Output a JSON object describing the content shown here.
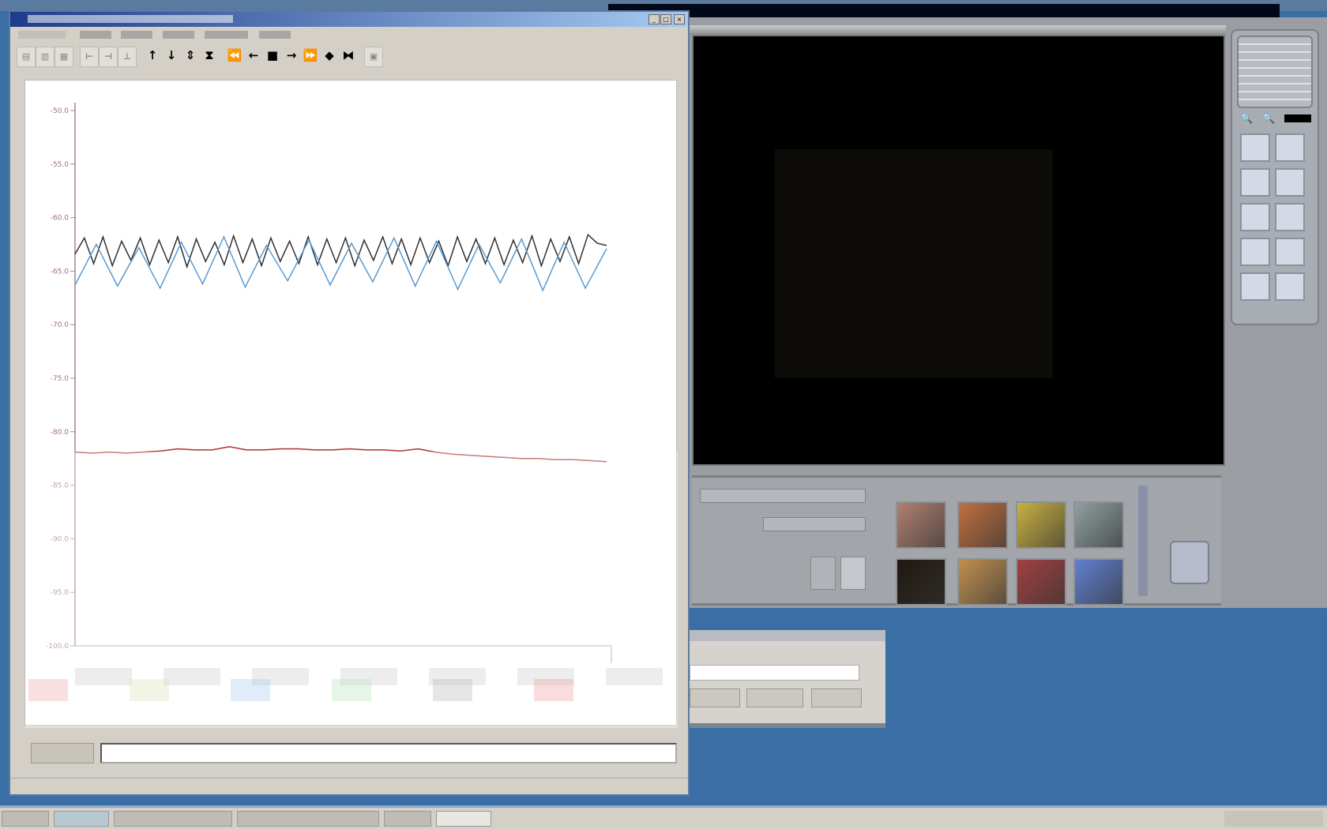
{
  "left_window": {
    "title": "",
    "toolbar": {
      "icons": [
        "view-1-icon",
        "view-2-icon",
        "view-3-icon",
        "cursor-1-icon",
        "cursor-2-icon",
        "cursor-3-icon",
        "arrow-up-icon",
        "arrow-down-icon",
        "arrow-updown-icon",
        "compress-vertical-icon",
        "rewind-icon",
        "step-back-icon",
        "stop-icon",
        "step-forward-icon",
        "fast-forward-icon",
        "expand-horizontal-icon",
        "compress-horizontal-icon",
        "print-icon"
      ]
    },
    "legend_colors": [
      "#e06060",
      "#c8c880",
      "#60a0e0",
      "#80d080",
      "#808080",
      "#e05050"
    ]
  },
  "chart_data": {
    "type": "line",
    "title": "",
    "ylabel": "",
    "ylim": [
      -100,
      -50
    ],
    "yticks": [
      "-50.0",
      "-55.0",
      "-60.0",
      "-65.0",
      "-70.0",
      "-75.0",
      "-80.0",
      "-85.0",
      "-90.0",
      "-95.0",
      "-100.0"
    ],
    "grid": false,
    "series": [
      {
        "color": "#303030",
        "values": [
          -63.4,
          -61.9,
          -64.3,
          -61.8,
          -64.5,
          -62.2,
          -64.0,
          -61.9,
          -64.4,
          -62.1,
          -64.2,
          -61.8,
          -64.6,
          -62.0,
          -64.1,
          -62.3,
          -64.4,
          -61.7,
          -64.2,
          -62.0,
          -64.5,
          -61.9,
          -64.1,
          -62.2,
          -64.3,
          -61.8,
          -64.4,
          -62.0,
          -64.2,
          -61.9,
          -64.5,
          -62.1,
          -64.0,
          -61.8,
          -64.3,
          -62.0,
          -64.4,
          -61.9,
          -64.2,
          -62.2,
          -64.5,
          -61.8,
          -64.1,
          -62.0,
          -64.3,
          -61.9,
          -64.4,
          -62.1,
          -64.2,
          -61.7,
          -64.5,
          -62.0,
          -64.1,
          -61.8,
          -64.3,
          -61.6,
          -62.4,
          -62.6
        ]
      },
      {
        "color": "#5a9ad0",
        "values": [
          -66.3,
          -62.5,
          -66.4,
          -62.8,
          -66.6,
          -62.3,
          -66.2,
          -61.8,
          -66.5,
          -62.6,
          -65.9,
          -62.1,
          -66.3,
          -62.4,
          -66.0,
          -61.9,
          -66.4,
          -62.2,
          -66.7,
          -62.5,
          -66.1,
          -62.0,
          -66.8,
          -62.3,
          -66.6,
          -62.9
        ]
      },
      {
        "color": "#b03030",
        "values": [
          -81.9,
          -82.0,
          -81.9,
          -82.0,
          -81.9,
          -81.8,
          -81.6,
          -81.7,
          -81.7,
          -81.4,
          -81.7,
          -81.7,
          -81.6,
          -81.6,
          -81.7,
          -81.7,
          -81.6,
          -81.7,
          -81.7,
          -81.8,
          -81.6,
          -81.9,
          -82.1,
          -82.2,
          -82.3,
          -82.4,
          -82.5,
          -82.5,
          -82.6,
          -82.6,
          -82.7,
          -82.8
        ]
      }
    ]
  },
  "right_window": {
    "thumbnail_colors": [
      [
        "#b08070",
        "#c07040",
        "#c8b040",
        "#90a0a0"
      ],
      [
        "#201810",
        "#c09050",
        "#a04040",
        "#6080d0"
      ]
    ],
    "tool_icons": [
      "fit-icon",
      "rotate-icon",
      "flip-icon",
      "film-icon",
      "undo-icon",
      "redo-icon",
      "copy-icon",
      "page-icon",
      "grid-icon",
      "frame-icon"
    ]
  },
  "colors": {
    "desktop": "#3a6ea5",
    "title_active": "#1d3c8c"
  }
}
